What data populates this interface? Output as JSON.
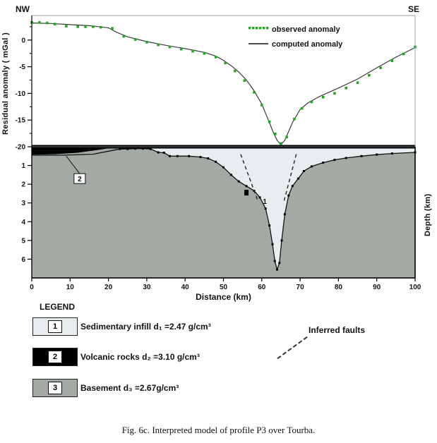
{
  "header": {
    "nw": "NW",
    "se": "SE"
  },
  "axes": {
    "left_label": "Residual anomaly ( mGal )",
    "right_label": "Depth (km)",
    "x_label": "Distance (km)"
  },
  "legend_panel": {
    "title": "LEGEND",
    "items": [
      {
        "number": "1",
        "label": "Sedimentary infill d₁ =2.47 g/cm³",
        "swatch_color": "#e8eef0"
      },
      {
        "number": "2",
        "label": "Volcanic rocks d₂ =3.10 g/cm³",
        "swatch_color": "#000000"
      },
      {
        "number": "3",
        "label": "Basement d₃ =2.67g/cm³",
        "swatch_color": "#a3aaa4"
      }
    ],
    "faults_label": "Inferred faults"
  },
  "caption": "Fig. 6c. Interpreted model of profile P3 over Tourba.",
  "chart_data": {
    "type": "line",
    "title": "Interpreted model of profile P3 over Tourba",
    "x_label": "Distance (km)",
    "xlim": [
      0,
      100
    ],
    "x_ticks": [
      0,
      10,
      20,
      30,
      40,
      50,
      60,
      70,
      80,
      90,
      100
    ],
    "colors": {
      "observed": "#1fa81f",
      "computed": "#3a3a3a",
      "basement": "#a3aaa4",
      "sediment": "#e8eef0",
      "volcanic": "#000000"
    },
    "anomaly_panel": {
      "ylabel": "Residual anomaly ( mGal )",
      "ylim": [
        4.6,
        -20
      ],
      "y_ticks": [
        0,
        -5,
        -10,
        -15,
        -20
      ],
      "legend": [
        {
          "label": "observed anomaly",
          "style": "green-dots"
        },
        {
          "label": "computed anomaly",
          "style": "black-line"
        }
      ],
      "observed": {
        "x": [
          0,
          2,
          4,
          6,
          9,
          12,
          14,
          16,
          18,
          21,
          24,
          27,
          30,
          33,
          36,
          39,
          42,
          45,
          48,
          50.5,
          53,
          55.5,
          58,
          60,
          62,
          63.5,
          65,
          66.5,
          68.5,
          70.5,
          73,
          76,
          79,
          82,
          85,
          88,
          91,
          94,
          97,
          100
        ],
        "y": [
          3.3,
          3.3,
          3.2,
          3.0,
          2.6,
          2.5,
          2.5,
          2.5,
          2.4,
          2.2,
          0.7,
          0.1,
          -0.4,
          -0.9,
          -1.3,
          -1.7,
          -2.1,
          -2.5,
          -3.2,
          -4.3,
          -5.8,
          -7.6,
          -9.8,
          -12.2,
          -15.3,
          -17.6,
          -19.4,
          -18.2,
          -14.8,
          -12.8,
          -11.6,
          -10.7,
          -10.0,
          -9.0,
          -8.0,
          -6.6,
          -5.2,
          -3.9,
          -2.6,
          -1.3
        ]
      },
      "computed": {
        "x": [
          0,
          5,
          10,
          15,
          20,
          22,
          25,
          30,
          35,
          40,
          45,
          48,
          50,
          52,
          54,
          56,
          58,
          60,
          62,
          63,
          64,
          65,
          66,
          68,
          70,
          72,
          75,
          80,
          85,
          90,
          95,
          100
        ],
        "y": [
          3.2,
          3.1,
          2.9,
          2.7,
          2.3,
          1.5,
          0.6,
          -0.3,
          -1.0,
          -1.6,
          -2.3,
          -3.0,
          -3.8,
          -4.8,
          -6.0,
          -7.5,
          -9.5,
          -12.0,
          -15.5,
          -17.3,
          -18.8,
          -19.6,
          -18.8,
          -15.5,
          -13.0,
          -11.8,
          -10.6,
          -9.0,
          -7.3,
          -5.2,
          -3.2,
          -1.4
        ]
      }
    },
    "model_panel": {
      "ylabel": "Depth (km)",
      "ylim": [
        0,
        7
      ],
      "y_ticks": [
        1,
        2,
        3,
        4,
        5,
        6
      ],
      "basement_top": {
        "x": [
          0,
          8,
          16,
          21,
          23,
          25,
          27,
          29,
          31,
          33,
          34.5,
          36,
          38,
          41,
          44,
          46,
          48,
          50,
          52,
          54,
          56,
          58,
          59.5,
          61,
          62,
          62.8,
          63.4,
          64,
          64.6,
          65.2,
          66,
          67,
          68,
          69.5,
          71,
          73,
          76,
          79,
          82,
          86,
          90,
          94,
          100
        ],
        "depth": [
          0.45,
          0.45,
          0.4,
          0.2,
          0.12,
          0.12,
          0.1,
          0.1,
          0.12,
          0.3,
          0.32,
          0.5,
          0.5,
          0.5,
          0.55,
          0.62,
          0.8,
          1.1,
          1.5,
          1.85,
          2.1,
          2.35,
          2.7,
          3.3,
          4.2,
          5.2,
          6.1,
          6.55,
          6.2,
          5.0,
          3.6,
          2.6,
          2.1,
          1.7,
          1.3,
          1.05,
          0.85,
          0.7,
          0.6,
          0.5,
          0.42,
          0.36,
          0.3
        ]
      },
      "volcanic": {
        "x": [
          0,
          22,
          18,
          12,
          6,
          0
        ],
        "depth": [
          0.02,
          0.02,
          0.15,
          0.32,
          0.4,
          0.42
        ]
      },
      "faults": [
        {
          "x": [
            54.5,
            59
          ],
          "depth": [
            0.4,
            2.9
          ]
        },
        {
          "x": [
            69,
            65.8
          ],
          "depth": [
            0.4,
            2.9
          ]
        }
      ],
      "unit_labels": [
        {
          "text": "2",
          "x": 12.5,
          "depth": 1.7,
          "boxed": true,
          "leader": {
            "x": 9,
            "depth": 0.5
          }
        },
        {
          "text": "1",
          "x": 60.8,
          "depth": 2.9,
          "boxed": false
        },
        {
          "text": "",
          "x": 56,
          "depth": 2.45,
          "marker": true
        }
      ]
    }
  }
}
